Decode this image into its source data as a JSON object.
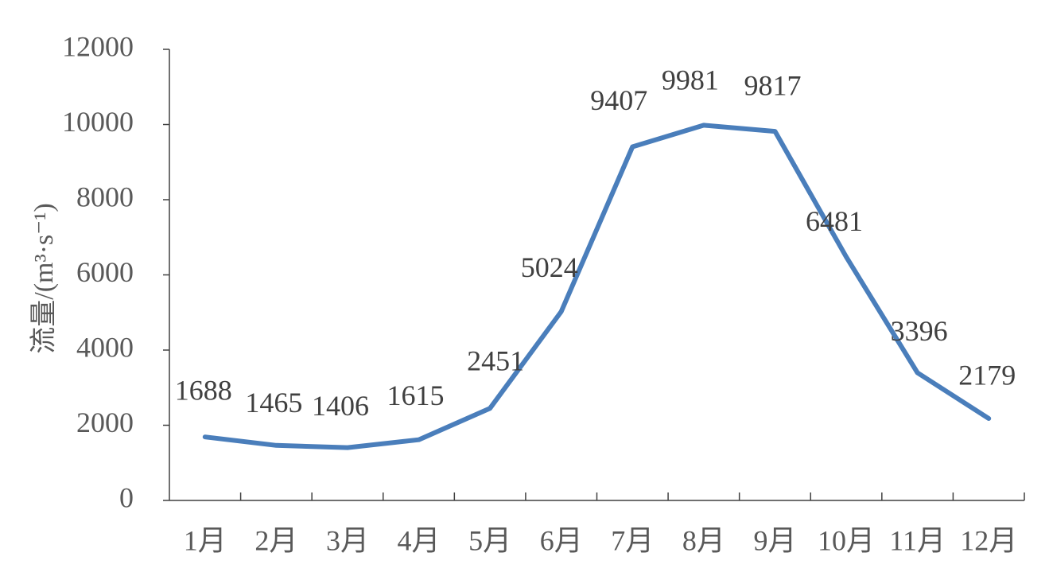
{
  "chart_data": {
    "type": "line",
    "categories": [
      "1月",
      "2月",
      "3月",
      "4月",
      "5月",
      "6月",
      "7月",
      "8月",
      "9月",
      "10月",
      "11月",
      "12月"
    ],
    "values": [
      1688,
      1465,
      1406,
      1615,
      2451,
      5024,
      9407,
      9981,
      9817,
      6481,
      3396,
      2179
    ],
    "data_labels": [
      "1688",
      "1465",
      "1406",
      "1615",
      "2451",
      "5024",
      "9407",
      "9981",
      "9817",
      "6481",
      "3396",
      "2179"
    ],
    "ylabel": "流量/(m³·s⁻¹)",
    "ylim": [
      0,
      12000
    ],
    "yticks": [
      "0",
      "2000",
      "4000",
      "6000",
      "8000",
      "10000",
      "12000"
    ],
    "grid": false,
    "legend": "none",
    "line_color": "#4a7ebb"
  }
}
